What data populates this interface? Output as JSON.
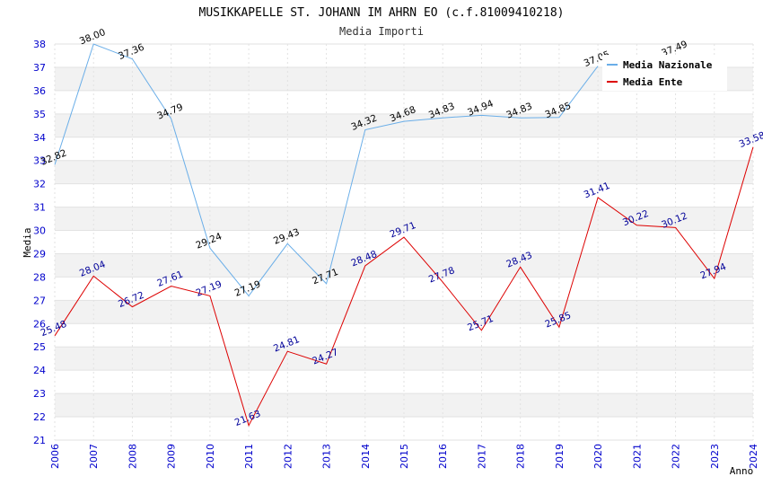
{
  "chart_data": {
    "type": "line",
    "title": "MUSIKKAPELLE ST. JOHANN IM AHRN EO (c.f.81009410218)",
    "subtitle": "Media Importi",
    "xlabel": "Anno",
    "ylabel": "Media",
    "ylim": [
      21,
      38
    ],
    "yticks": [
      "21",
      "22",
      "23",
      "24",
      "25",
      "26",
      "27",
      "28",
      "29",
      "30",
      "31",
      "32",
      "33",
      "34",
      "35",
      "36",
      "37",
      "38"
    ],
    "grid": true,
    "legend_position": "top-right",
    "x": [
      "2006",
      "2007",
      "2008",
      "2009",
      "2010",
      "2011",
      "2012",
      "2013",
      "2014",
      "2015",
      "2016",
      "2017",
      "2018",
      "2019",
      "2020",
      "2021",
      "2022",
      "2023",
      "2024"
    ],
    "series": [
      {
        "name": "Media Nazionale",
        "color": "#6aaee8",
        "label_color": "#000000",
        "values": [
          32.82,
          38.0,
          37.36,
          34.79,
          29.24,
          27.19,
          29.43,
          27.71,
          34.32,
          34.68,
          34.83,
          34.94,
          34.83,
          34.85,
          37.05,
          null,
          37.49,
          null,
          null
        ],
        "labels": [
          "32.82",
          "38.00",
          "37.36",
          "34.79",
          "29.24",
          "27.19",
          "29.43",
          "27.71",
          "34.32",
          "34.68",
          "34.83",
          "34.94",
          "34.83",
          "34.85",
          "37.05",
          "",
          "37.49",
          "",
          ""
        ]
      },
      {
        "name": "Media Ente",
        "color": "#dd0000",
        "label_color": "#000099",
        "values": [
          25.48,
          28.04,
          26.72,
          27.61,
          27.19,
          21.63,
          24.81,
          24.27,
          28.48,
          29.71,
          27.78,
          25.71,
          28.43,
          25.85,
          31.41,
          30.22,
          30.12,
          27.94,
          33.58
        ],
        "labels": [
          "25.48",
          "28.04",
          "26.72",
          "27.61",
          "27.19",
          "21.63",
          "24.81",
          "24.27",
          "28.48",
          "29.71",
          "27.78",
          "25.71",
          "28.43",
          "25.85",
          "31.41",
          "30.22",
          "30.12",
          "27.94",
          "33.58"
        ]
      }
    ]
  }
}
